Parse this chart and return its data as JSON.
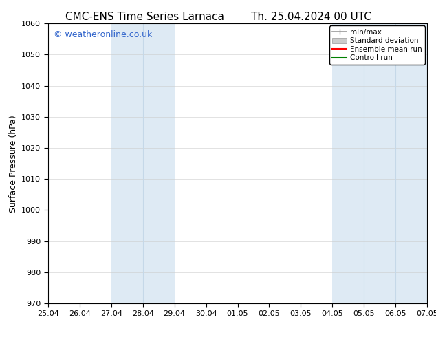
{
  "title_left": "CMC-ENS Time Series Larnaca",
  "title_right": "Th. 25.04.2024 00 UTC",
  "ylabel": "Surface Pressure (hPa)",
  "watermark": "© weatheronline.co.uk",
  "watermark_color": "#3366cc",
  "ylim": [
    970,
    1060
  ],
  "yticks": [
    970,
    980,
    990,
    1000,
    1010,
    1020,
    1030,
    1040,
    1050,
    1060
  ],
  "xtick_labels": [
    "25.04",
    "26.04",
    "27.04",
    "28.04",
    "29.04",
    "30.04",
    "01.05",
    "02.05",
    "03.05",
    "04.05",
    "05.05",
    "06.05",
    "07.05"
  ],
  "background_color": "#ffffff",
  "plot_bg_color": "#ffffff",
  "shaded_regions": [
    {
      "x_start": "27.04",
      "x_end": "29.04",
      "color": "#deeaf4"
    },
    {
      "x_start": "04.05",
      "x_end": "07.05",
      "color": "#deeaf4"
    }
  ],
  "shaded_internal_lines": [
    "28.04",
    "05.05",
    "06.05"
  ],
  "legend_items": [
    {
      "label": "min/max",
      "color": "#999999",
      "style": "line_with_caps"
    },
    {
      "label": "Standard deviation",
      "color": "#cccccc",
      "style": "rect"
    },
    {
      "label": "Ensemble mean run",
      "color": "#ff0000",
      "style": "line"
    },
    {
      "label": "Controll run",
      "color": "#008000",
      "style": "line"
    }
  ],
  "title_fontsize": 11,
  "axis_label_fontsize": 9,
  "tick_fontsize": 8,
  "watermark_fontsize": 9,
  "grid_color": "#cccccc",
  "border_color": "#000000"
}
